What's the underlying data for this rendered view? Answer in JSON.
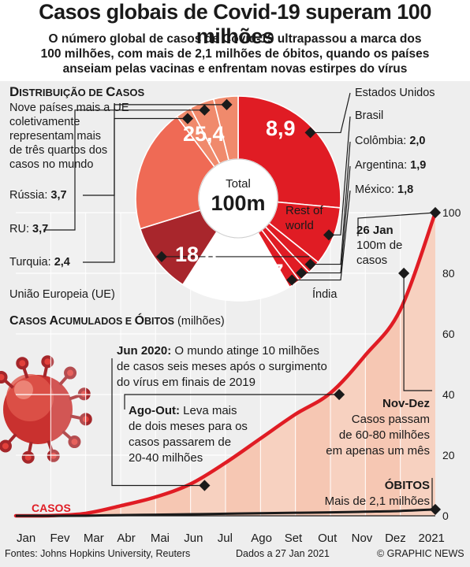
{
  "header": {
    "title": "Casos globais de Covid-19 superam 100 milhões",
    "subtitle_line1": "O número global de casos de Covid-19 ultrapassou a marca dos",
    "subtitle_line2": "100 milhões, com mais de 2,1 milhões de óbitos, quando os países",
    "subtitle_line3": "anseiam pelas vacinas e enfrentam novas estirpes do vírus"
  },
  "distribution": {
    "heading_big": "D",
    "heading_rest": "ISTRIBUIÇÃO DE ",
    "heading_big2": "C",
    "heading_rest2": "ASOS",
    "note_line1": "Nove países mais a UE",
    "note_line2": "coletivamente",
    "note_line3": "representam mais",
    "note_line4": "de três quartos dos",
    "note_line5": "casos no mundo",
    "total_label": "Total",
    "total_value": "100m",
    "rest_label_line1": "Rest of",
    "rest_label_line2": "world"
  },
  "colors": {
    "dark_red": "#e01c24",
    "mid_red": "#e8574a",
    "light_red": "#f08a6c",
    "maroon": "#a8262c",
    "eu": "#ef6a55",
    "line": "#e01c24",
    "area": "#f6c7b3"
  },
  "chart_data": [
    {
      "type": "pie",
      "title": "Distribuição de casos",
      "slices": [
        {
          "label": "Estados Unidos",
          "value": 25.4,
          "value_label": "25,4",
          "color": "#e01c24"
        },
        {
          "label": "Brasil",
          "value": 8.9,
          "value_label": "8,9",
          "color": "#e01c24"
        },
        {
          "label": "Colômbia",
          "value": 2.0,
          "value_label": "2,0",
          "color": "#e01c24"
        },
        {
          "label": "Argentina",
          "value": 1.9,
          "value_label": "1,9",
          "color": "#e01c24"
        },
        {
          "label": "México",
          "value": 1.8,
          "value_label": "1,8",
          "color": "#e01c24"
        },
        {
          "label": "Rest of world",
          "value": 16.7,
          "value_label": "",
          "color": "#ffffff"
        },
        {
          "label": "Índia",
          "value": 10.7,
          "value_label": "10,7",
          "color": "#a8262c"
        },
        {
          "label": "União Europeia (UE)",
          "value": 18.8,
          "value_label": "18,8",
          "color": "#ef6a55"
        },
        {
          "label": "Turquia",
          "value": 2.4,
          "value_label": "2,4",
          "color": "#f08a6c"
        },
        {
          "label": "RU",
          "value": 3.7,
          "value_label": "3,7",
          "color": "#f08a6c"
        },
        {
          "label": "Rússia",
          "value": 3.7,
          "value_label": "3,7",
          "color": "#f08a6c"
        }
      ]
    },
    {
      "type": "area",
      "title_big1": "C",
      "title_rest1": "ASOS ",
      "title_big2": "A",
      "title_rest2": "CUMULADOS E ",
      "title_big3": "Ó",
      "title_rest3": "BITOS",
      "unit": "(milhões)",
      "categories": [
        "Jan",
        "Fev",
        "Mar",
        "Abr",
        "Mai",
        "Jun",
        "Jul",
        "Ago",
        "Set",
        "Out",
        "Nov",
        "Dez",
        "2021"
      ],
      "ylim": [
        0,
        100
      ],
      "yticks": [
        0,
        20,
        40,
        60,
        80,
        100
      ],
      "series": [
        {
          "name": "Casos",
          "values": [
            0.01,
            0.08,
            0.8,
            3.3,
            6.2,
            10.5,
            17.5,
            25.5,
            33.5,
            40.5,
            53.0,
            68.0,
            100.0
          ]
        },
        {
          "name": "Óbitos",
          "values": [
            0,
            0.003,
            0.04,
            0.24,
            0.37,
            0.51,
            0.68,
            0.85,
            1.0,
            1.14,
            1.36,
            1.6,
            2.1
          ]
        }
      ],
      "markers": [
        {
          "series": "Casos",
          "month": 5.4,
          "value": 10
        },
        {
          "series": "Casos",
          "month": 9.25,
          "value": 40
        },
        {
          "series": "Casos",
          "month": 11.1,
          "value": 80
        },
        {
          "series": "Casos",
          "month": 12.0,
          "value": 100
        }
      ]
    }
  ],
  "annotations": {
    "jun_bold": "Jun 2020:",
    "jun_l1": " O mundo atinge 10 milhões",
    "jun_l2": "de casos seis meses após o surgimento",
    "jun_l3": "do vírus em finais de 2019",
    "ago_bold": "Ago-Out:",
    "ago_l1": " Leva mais",
    "ago_l2": "de dois meses para os",
    "ago_l3": "casos passarem de",
    "ago_l4": "20-40 milhões",
    "nov_bold": "Nov-Dez",
    "nov_l1": "Casos passam",
    "nov_l2": "de 60-80 milhões",
    "nov_l3": "em apenas um mês",
    "jan_bold": "26 Jan",
    "jan_l1": "100m de",
    "jan_l2": "casos",
    "obitos_bold": "ÓBITOS",
    "obitos_l1": "Mais de 2,1 milhões",
    "casos_label": "CASOS"
  },
  "footer": {
    "sources": "Fontes: Johns Hopkins University, Reuters",
    "date": "Dados a 27 Jan 2021",
    "credit": "© GRAPHIC NEWS"
  }
}
